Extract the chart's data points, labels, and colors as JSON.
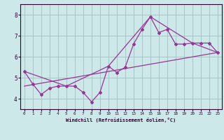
{
  "xlabel": "Windchill (Refroidissement éolien,°C)",
  "bg_color": "#cce8e8",
  "grid_color": "#99cccc",
  "line_color": "#993399",
  "spine_color": "#330033",
  "tick_color": "#330033",
  "xlim": [
    -0.5,
    23.5
  ],
  "ylim": [
    3.5,
    8.5
  ],
  "xticks": [
    0,
    1,
    2,
    3,
    4,
    5,
    6,
    7,
    8,
    9,
    10,
    11,
    12,
    13,
    14,
    15,
    16,
    17,
    18,
    19,
    20,
    21,
    22,
    23
  ],
  "yticks": [
    4,
    5,
    6,
    7,
    8
  ],
  "series1_x": [
    0,
    1,
    2,
    3,
    4,
    5,
    6,
    7,
    8,
    9,
    10,
    11,
    12,
    13,
    14,
    15,
    16,
    17,
    18,
    19,
    20,
    21,
    22,
    23
  ],
  "series1_y": [
    5.3,
    4.7,
    4.2,
    4.5,
    4.6,
    4.6,
    4.6,
    4.3,
    3.85,
    4.3,
    5.55,
    5.25,
    5.5,
    6.6,
    7.3,
    7.9,
    7.15,
    7.3,
    6.6,
    6.6,
    6.65,
    6.65,
    6.65,
    6.2
  ],
  "series2_x": [
    0,
    5,
    10,
    15,
    20,
    23
  ],
  "series2_y": [
    5.3,
    4.6,
    5.55,
    7.9,
    6.65,
    6.2
  ],
  "series3_x": [
    0,
    23
  ],
  "series3_y": [
    4.6,
    6.2
  ]
}
